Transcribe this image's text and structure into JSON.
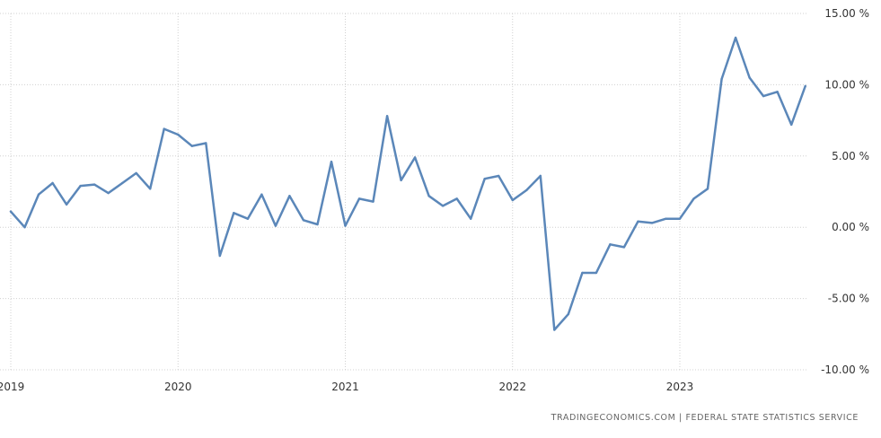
{
  "chart_data": {
    "type": "line",
    "title": "",
    "xlabel": "",
    "ylabel": "",
    "x_tick_labels": [
      "2019",
      "2020",
      "2021",
      "2022",
      "2023"
    ],
    "y_ticks": [
      15,
      10,
      5,
      0,
      -5,
      -10
    ],
    "y_tick_labels": [
      "15.00 %",
      "10.00 %",
      "5.00 %",
      "0.00 %",
      "-5.00 %",
      "-10.00 %"
    ],
    "ylim": [
      -10,
      15
    ],
    "grid": true,
    "series": [
      {
        "color": "#5b87b9",
        "x": [
          "2019-01",
          "2019-02",
          "2019-03",
          "2019-04",
          "2019-05",
          "2019-06",
          "2019-07",
          "2019-08",
          "2019-09",
          "2019-10",
          "2019-11",
          "2019-12",
          "2020-01",
          "2020-02",
          "2020-03",
          "2020-04",
          "2020-05",
          "2020-06",
          "2020-07",
          "2020-08",
          "2020-09",
          "2020-10",
          "2020-11",
          "2020-12",
          "2021-01",
          "2021-02",
          "2021-03",
          "2021-04",
          "2021-05",
          "2021-06",
          "2021-07",
          "2021-08",
          "2021-09",
          "2021-10",
          "2021-11",
          "2021-12",
          "2022-01",
          "2022-02",
          "2022-03",
          "2022-04",
          "2022-05",
          "2022-06",
          "2022-07",
          "2022-08",
          "2022-09",
          "2022-10",
          "2022-11",
          "2022-12",
          "2023-01",
          "2023-02",
          "2023-03",
          "2023-04",
          "2023-05",
          "2023-06",
          "2023-07",
          "2023-08",
          "2023-09",
          "2023-10"
        ],
        "values": [
          1.1,
          0.0,
          2.3,
          3.1,
          1.6,
          2.9,
          3.0,
          2.4,
          3.1,
          3.8,
          2.7,
          6.9,
          6.5,
          5.7,
          5.9,
          -2.0,
          1.0,
          0.6,
          2.3,
          0.1,
          2.2,
          0.5,
          0.2,
          4.6,
          0.1,
          2.0,
          1.8,
          7.8,
          3.3,
          4.9,
          2.2,
          1.5,
          2.0,
          0.6,
          3.4,
          3.6,
          1.9,
          2.6,
          3.6,
          -7.2,
          -6.1,
          -3.2,
          -3.2,
          -1.2,
          -1.4,
          0.4,
          0.3,
          0.6,
          0.6,
          2.0,
          2.7,
          10.4,
          13.3,
          10.5,
          9.2,
          9.5,
          7.2,
          9.9
        ]
      }
    ]
  },
  "footer": {
    "source_text": "TRADINGECONOMICS.COM  |  FEDERAL STATE STATISTICS SERVICE"
  }
}
